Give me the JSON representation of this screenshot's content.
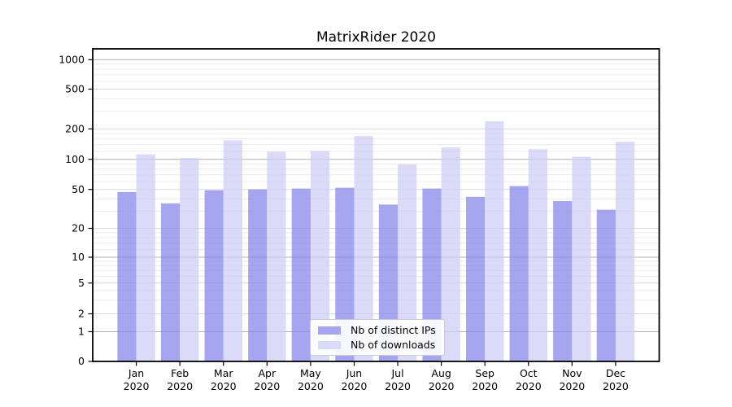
{
  "chart_data": {
    "type": "bar",
    "title": "MatrixRider 2020",
    "categories": [
      "Jan 2020",
      "Feb 2020",
      "Mar 2020",
      "Apr 2020",
      "May 2020",
      "Jun 2020",
      "Jul 2020",
      "Aug 2020",
      "Sep 2020",
      "Oct 2020",
      "Nov 2020",
      "Dec 2020"
    ],
    "series": [
      {
        "name": "Nb of distinct IPs",
        "color": "#8383ea",
        "legend_color": "#a6a6f0",
        "values": [
          47,
          36,
          49,
          50,
          51,
          52,
          35,
          51,
          42,
          54,
          38,
          31
        ]
      },
      {
        "name": "Nb of downloads",
        "color": "#cdcdf6",
        "legend_color": "#dbdbf9",
        "values": [
          112,
          103,
          154,
          119,
          121,
          170,
          89,
          131,
          238,
          126,
          106,
          149
        ]
      }
    ],
    "xlabel": "",
    "ylabel": "",
    "yscale": "symlog",
    "ylim": [
      0,
      1270
    ],
    "yticks": [
      0,
      1,
      2,
      5,
      10,
      20,
      50,
      100,
      200,
      500,
      1000
    ],
    "minor_gridlines": [
      3,
      4,
      6,
      7,
      8,
      9,
      12,
      14,
      16,
      18,
      30,
      40,
      60,
      70,
      80,
      90,
      120,
      140,
      160,
      180,
      300,
      400,
      600,
      700,
      800,
      900
    ],
    "grid": true,
    "legend_position": "lower center",
    "colors": {
      "decade_gridline": "#b1b1b1",
      "tick_gridline": "#d9d9d9",
      "minor_gridline": "#ececec",
      "axis": "#000000",
      "text": "#000000"
    }
  }
}
